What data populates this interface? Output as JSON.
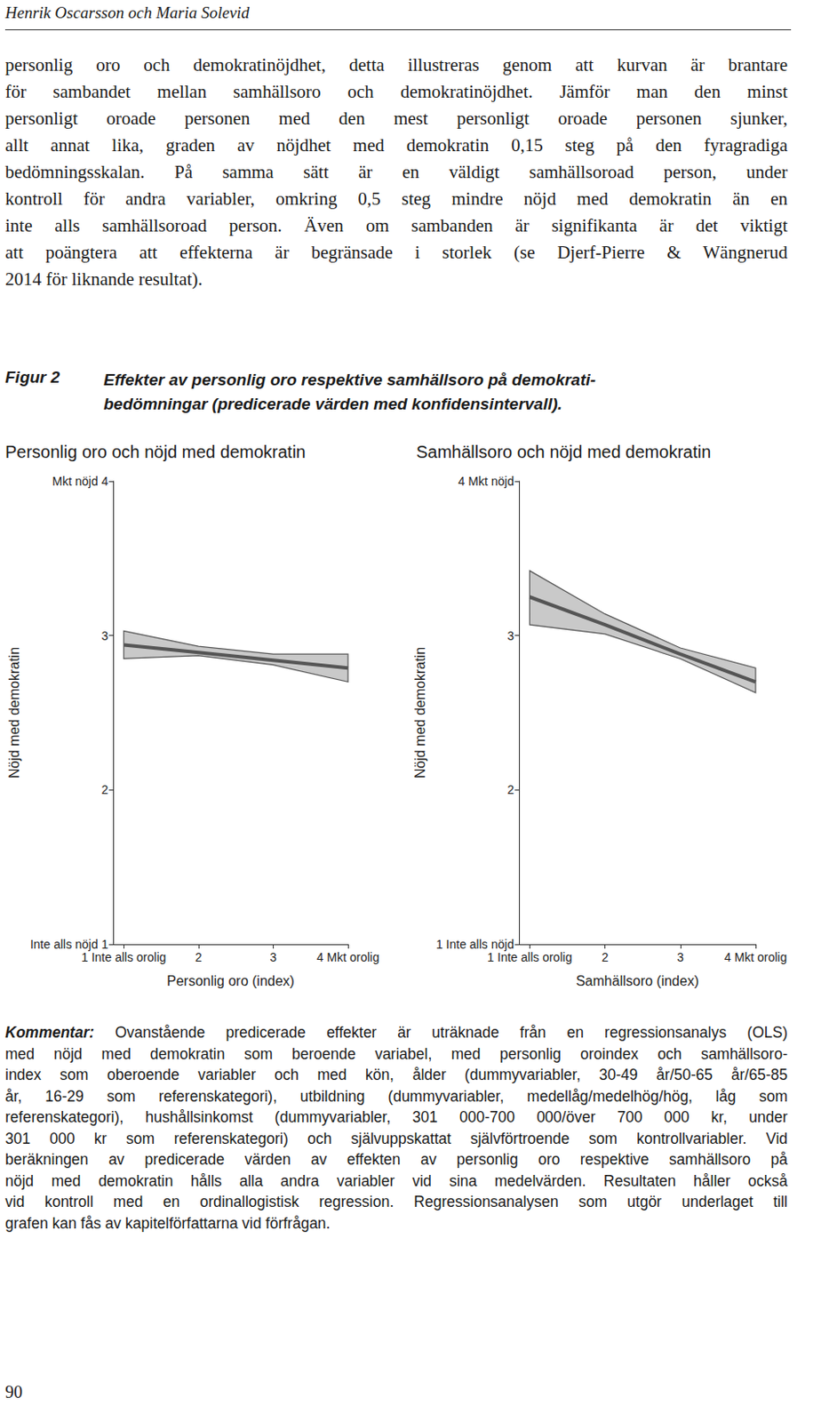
{
  "header": "Henrik Oscarsson och Maria Solevid",
  "paragraph": [
    "personlig oro och demokratinöjdhet, detta illustreras genom att kurvan är brantare",
    "för sambandet mellan samhällsoro och demokratinöjdhet. Jämför man den minst",
    "personligt oroade personen med den mest personligt oroade personen sjunker,",
    "allt annat lika, graden av nöjdhet med demokratin 0,15 steg på den fyragradiga",
    "bedömningsskalan. På samma sätt är en väldigt samhällsoroad person, under",
    "kontroll för andra variabler, omkring 0,5 steg mindre nöjd med demokratin än en",
    "inte alls samhällsoroad person. Även om sambanden är signifikanta är det viktigt",
    "att poängtera att effekterna är begränsade i storlek (se Djerf-Pierre & Wängnerud",
    "2014 för liknande resultat)."
  ],
  "figure_label": "Figur 2",
  "figure_caption": [
    "Effekter av personlig oro respektive samhällsoro på demokrati-",
    "bedömningar (predicerade värden med konfidensintervall)."
  ],
  "chart_data": [
    {
      "type": "line",
      "title": "Personlig oro och nöjd med demokratin",
      "x_label": "Personlig oro (index)",
      "y_label": "Nöjd med demokratin",
      "x": [
        1,
        2,
        3,
        4
      ],
      "values": [
        2.94,
        2.89,
        2.84,
        2.79
      ],
      "lower": [
        2.85,
        2.87,
        2.81,
        2.7
      ],
      "upper": [
        3.03,
        2.93,
        2.88,
        2.88
      ],
      "color": "#555555",
      "xlim": [
        0.86,
        4
      ],
      "xticks": [
        {
          "value": 1,
          "label": "1 Inte alls orolig"
        },
        2,
        3,
        {
          "value": 4,
          "label": "4 Mkt orolig"
        }
      ],
      "ylim": [
        1,
        4
      ],
      "yticks": [
        {
          "value": 1,
          "label": "Inte alls nöjd 1"
        },
        2,
        3,
        {
          "value": 4,
          "label": "Mkt nöjd 4"
        }
      ],
      "grid": false
    },
    {
      "type": "line",
      "title": "Samhällsoro och nöjd med demokratin",
      "x_label": "Samhällsoro (index)",
      "y_label": "Nöjd med demokratin",
      "x": [
        1,
        2,
        3,
        4
      ],
      "values": [
        3.25,
        3.07,
        2.88,
        2.7
      ],
      "lower": [
        3.07,
        3.01,
        2.85,
        2.63
      ],
      "upper": [
        3.42,
        3.14,
        2.92,
        2.79
      ],
      "color": "#555555",
      "xlim": [
        0.86,
        4
      ],
      "xticks": [
        {
          "value": 1,
          "label": "1 Inte alls orolig"
        },
        2,
        3,
        {
          "value": 4,
          "label": "4 Mkt orolig"
        }
      ],
      "ylim": [
        1,
        4
      ],
      "yticks": [
        {
          "value": 1,
          "label": "1 Inte alls nöjd"
        },
        2,
        3,
        {
          "value": 4,
          "label": "4 Mkt nöjd"
        }
      ],
      "grid": false
    }
  ],
  "comment_label": "Kommentar:",
  "comment": [
    "Ovanstående predicerade effekter är uträknade från en regressionsanalys (OLS)",
    "med nöjd med demokratin som beroende variabel, med personlig oroindex och samhällsoro-",
    "index som oberoende variabler och med kön, ålder (dummyvariabler, 30-49 år/50-65 år/65-85",
    "år, 16-29 som referenskategori), utbildning (dummyvariabler, medellåg/medelhög/hög, låg som",
    "referenskategori), hushållsinkomst (dummyvariabler, 301 000-700 000/över 700 000 kr, under",
    "301 000 kr som referenskategori) och självuppskattat självförtroende som kontrollvariabler. Vid",
    "beräkningen av predicerade värden av effekten av personlig oro respektive samhällsoro på",
    "nöjd med demokratin hålls alla andra variabler vid sina medelvärden. Resultaten håller också",
    "vid kontroll med en ordinallogistisk regression. Regressionsanalysen som utgör underlaget till",
    "grafen kan fås av kapitelförfattarna vid förfrågan."
  ],
  "page_number": "90"
}
